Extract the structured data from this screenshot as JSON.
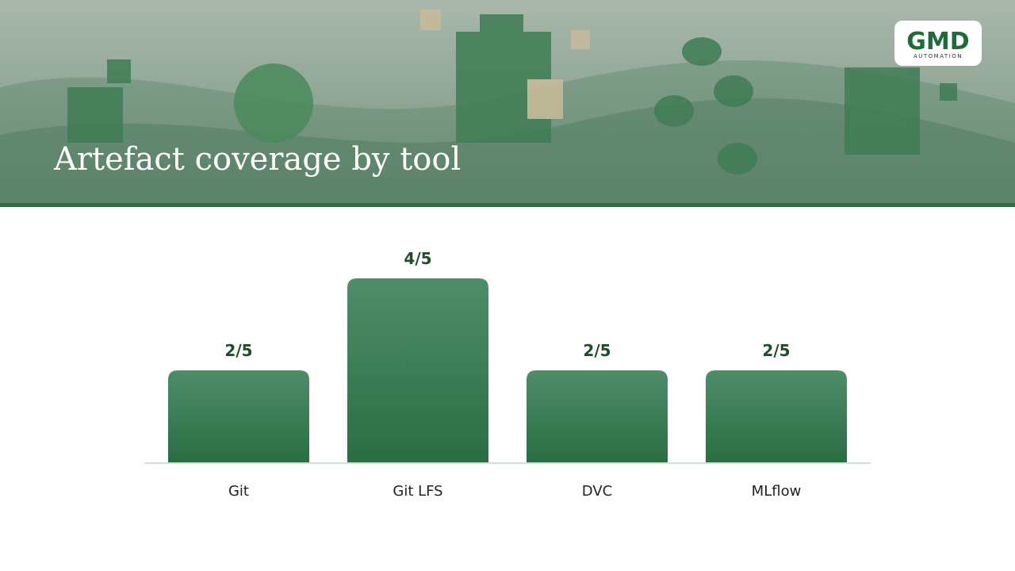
{
  "title": "Artefact coverage by tool",
  "logo": {
    "name": "GMD",
    "tagline": "AUTOMATION"
  },
  "chart_data": {
    "type": "bar",
    "categories": [
      "Git",
      "Git LFS",
      "DVC",
      "MLflow"
    ],
    "values": [
      2,
      4,
      2,
      2
    ],
    "value_labels": [
      "2/5",
      "4/5",
      "2/5",
      "2/5"
    ],
    "color": "#3a7d55",
    "ylim": [
      0,
      5
    ]
  }
}
